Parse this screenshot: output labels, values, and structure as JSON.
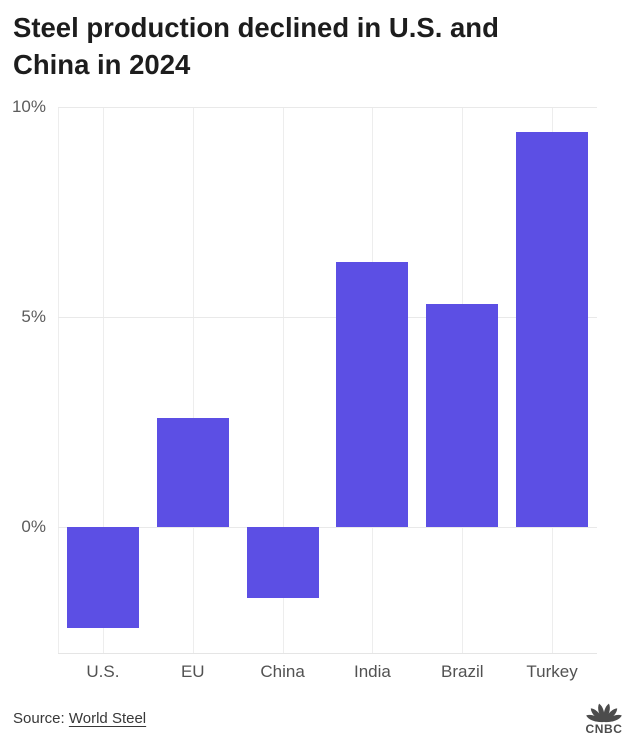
{
  "header": {
    "title": "Steel production declined in U.S. and China in 2024",
    "title_line1": "Steel production declined in U.S. and",
    "title_line2": "China in 2024"
  },
  "chart_data": {
    "type": "bar",
    "categories": [
      "U.S.",
      "EU",
      "China",
      "India",
      "Brazil",
      "Turkey"
    ],
    "values": [
      -2.4,
      2.6,
      -1.7,
      6.3,
      5.3,
      9.4
    ],
    "title": "Steel production declined in U.S. and China in 2024",
    "xlabel": "",
    "ylabel": "",
    "ylim": [
      -3,
      10
    ],
    "yticks": [
      {
        "value": 10,
        "label": "10%"
      },
      {
        "value": 5,
        "label": "5%"
      },
      {
        "value": 0,
        "label": "0%"
      }
    ],
    "grid": "horizontal ticks + vertical line per category center + left boundary",
    "legend": "none",
    "bar_color": "#5c4fe4"
  },
  "colors": {
    "bar": "#5c4fe4",
    "title_text": "#1d1d1d",
    "tick_label": "#5c5c5c",
    "category_label": "#525252",
    "gridline": "#e9e9e9",
    "source_text": "#383838",
    "logo_gray": "#4c4c4c",
    "background": "#ffffff"
  },
  "source": {
    "prefix": "Source: ",
    "link": "World Steel"
  },
  "logo": {
    "text": "CNBC"
  }
}
